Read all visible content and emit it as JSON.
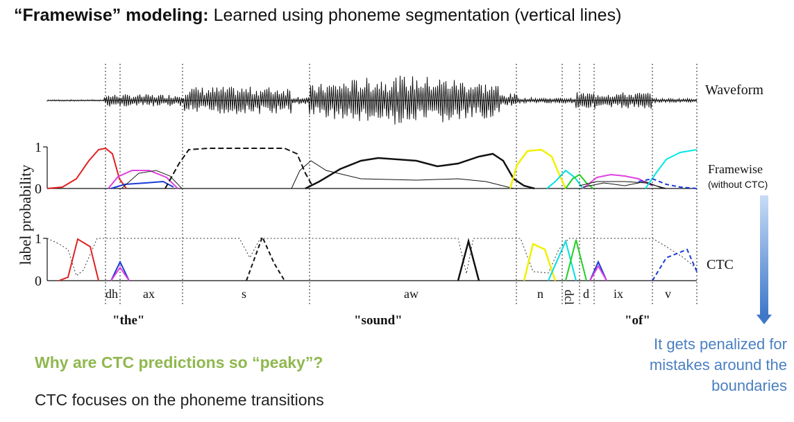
{
  "title": {
    "bold": "“Framewise” modeling:",
    "rest": " Learned using phoneme segmentation (vertical lines)"
  },
  "figure": {
    "row_labels": {
      "waveform": "Waveform",
      "framewise": "Framewise",
      "framewise_sub": "(without CTC)",
      "ctc": "CTC"
    },
    "y_axis_label": "label probability",
    "y_ticks": [
      "1",
      "0"
    ],
    "phonemes": [
      "dh",
      "ax",
      "s",
      "aw",
      "n",
      "dcl",
      "d",
      "ix",
      "v"
    ],
    "words": [
      "\"the\"",
      "\"sound\"",
      "\"of\""
    ]
  },
  "question": "Why are CTC predictions so “peaky”?",
  "answer": "CTC focuses on the phoneme transitions",
  "note": "It gets penalized for mistakes around the boundaries",
  "colors": {
    "accent_green": "#8fb84e",
    "note_blue": "#4a7fc1",
    "arrow_blue": "#5b8fd6"
  }
}
